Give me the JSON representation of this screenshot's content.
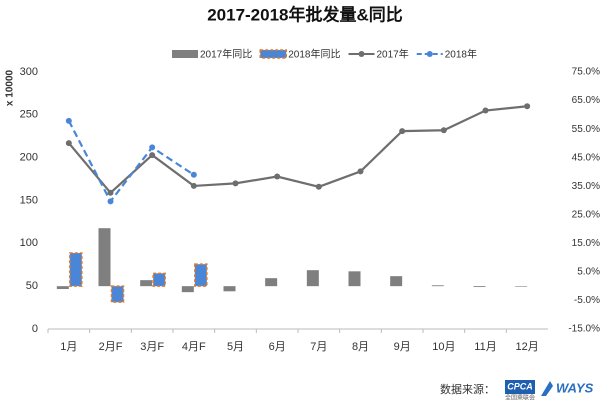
{
  "chart_data": {
    "type": "combo",
    "title": "2017-2018年批发量&同比",
    "y_label": "x 10000",
    "categories": [
      "1月",
      "2月F",
      "3月F",
      "4月F",
      "5月",
      "6月",
      "7月",
      "8月",
      "9月",
      "10月",
      "11月",
      "12月"
    ],
    "ylim": [
      0,
      300
    ],
    "yticks": [
      0,
      50,
      100,
      150,
      200,
      250,
      300
    ],
    "y2lim": [
      -15,
      75
    ],
    "y2ticks": [
      {
        "value": -15,
        "label": "-15.0%"
      },
      {
        "value": -5,
        "label": "-5.0%"
      },
      {
        "value": 5,
        "label": "5.0%"
      },
      {
        "value": 15,
        "label": "15.0%"
      },
      {
        "value": 25,
        "label": "25.0%"
      },
      {
        "value": 35,
        "label": "35.0%"
      },
      {
        "value": 45,
        "label": "45.0%"
      },
      {
        "value": 55,
        "label": "55.0%"
      },
      {
        "value": 65,
        "label": "65.0%"
      },
      {
        "value": 75,
        "label": "75.0%"
      }
    ],
    "series": [
      {
        "name": "2017年同比",
        "kind": "bar",
        "axis": "y2",
        "color": "#7f7f7f",
        "values": [
          -1,
          20.3,
          2.1,
          -2.1,
          -1.8,
          2.8,
          5.6,
          5.2,
          3.5,
          0.3,
          -0.3,
          -0.2
        ]
      },
      {
        "name": "2018年同比",
        "kind": "bar",
        "axis": "y2",
        "color": "#4a86d8",
        "border_color": "#e07a28",
        "values": [
          11.6,
          -5.6,
          4.5,
          7.7,
          null,
          null,
          null,
          null,
          null,
          null,
          null,
          null
        ]
      },
      {
        "name": "2017年",
        "kind": "line",
        "color": "#6e6e6e",
        "dashed": false,
        "values": [
          217,
          159,
          203,
          167,
          170,
          178,
          166,
          184,
          231,
          232,
          255,
          260
        ]
      },
      {
        "name": "2018年",
        "kind": "line",
        "color": "#4a86d8",
        "dashed": true,
        "values": [
          243,
          149,
          212,
          180,
          null,
          null,
          null,
          null,
          null,
          null,
          null,
          null
        ]
      }
    ],
    "source_label": "数据来源：",
    "source_logos": [
      "CPCA",
      "全国乘联会",
      "WAYS"
    ]
  }
}
